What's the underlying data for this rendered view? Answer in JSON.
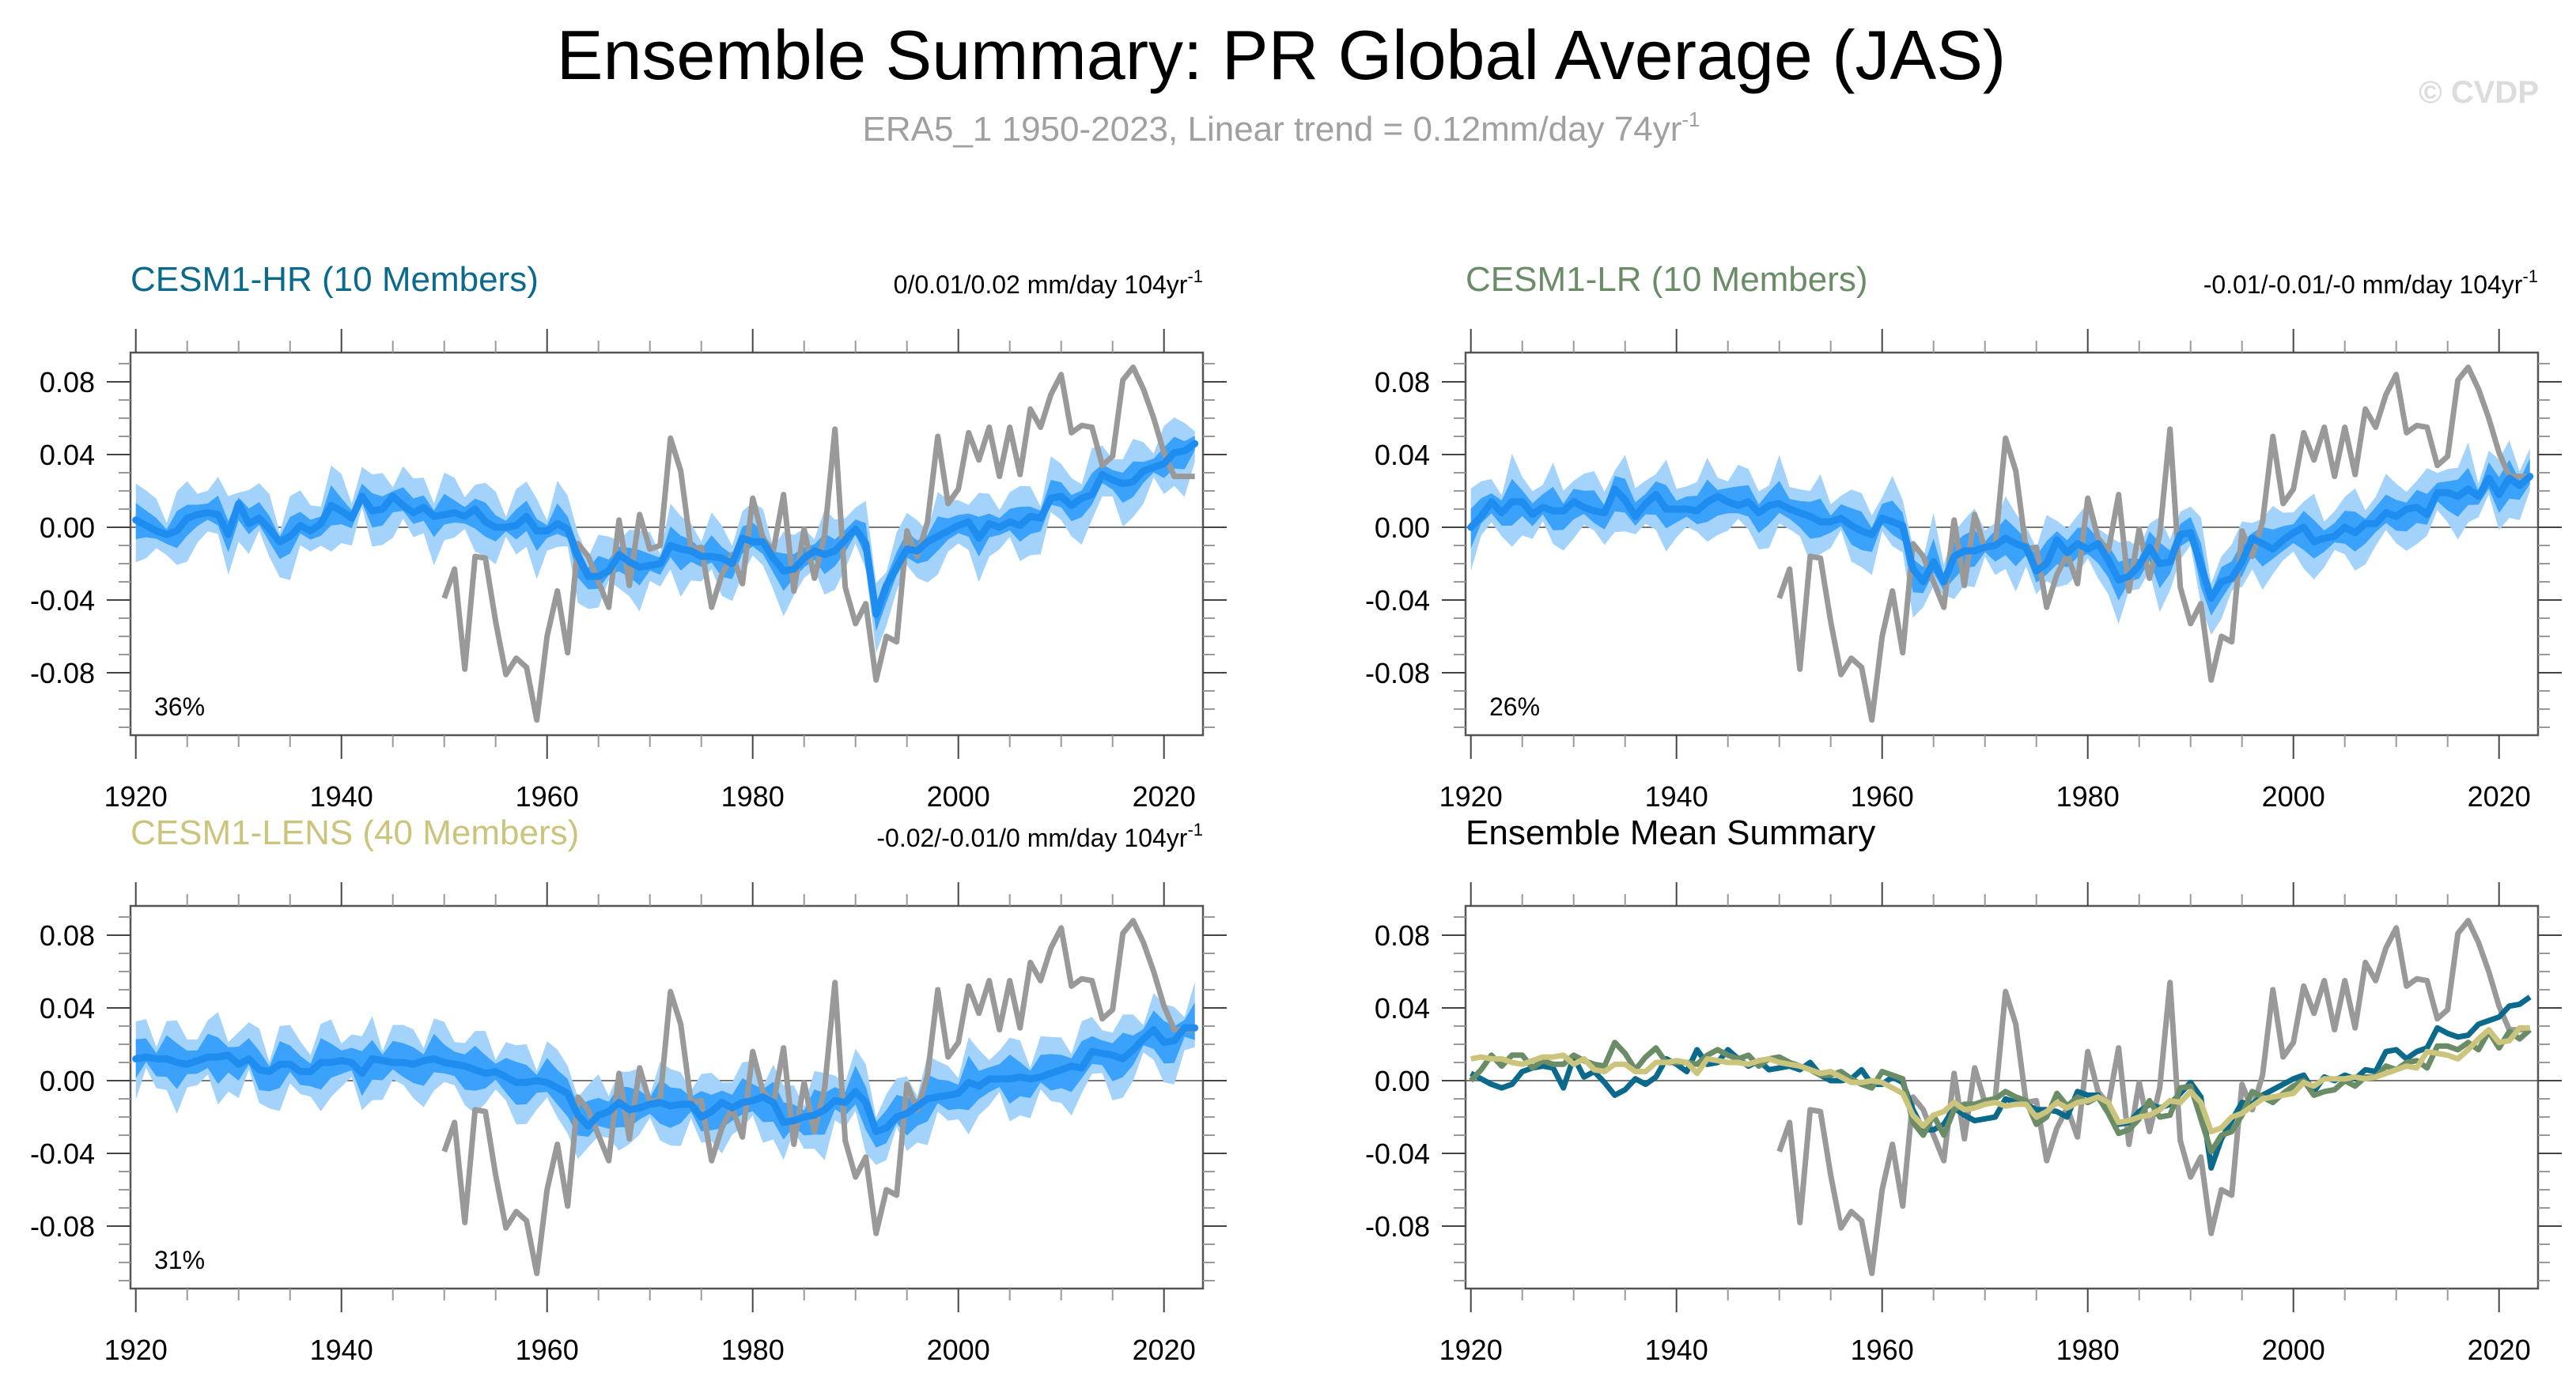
{
  "chart_data": {
    "type": "line",
    "title": "Ensemble Summary: PR Global Average (JAS)",
    "subtitle": {
      "text": "ERA5_1 1950-2023, Linear trend = 0.12mm/day 74yr",
      "superscript": "-1"
    },
    "watermark": "© CVDP",
    "layout": "2x2 grid",
    "shared_axes": {
      "xlim": [
        1920,
        2023
      ],
      "x_ticks": [
        1920,
        1940,
        1960,
        1980,
        2000,
        2020
      ],
      "x_tick_labels": [
        "1920",
        "1940",
        "1960",
        "1980",
        "2000",
        "2020"
      ],
      "x_minor_step": 5,
      "ylim": [
        -0.12,
        0.1
      ],
      "y_ticks": [
        0.08,
        0.04,
        0.0,
        -0.04,
        -0.08
      ],
      "y_tick_labels": [
        "0.08",
        "0.04",
        "0.00",
        "-0.04",
        "-0.08"
      ],
      "y_minor_step": 0.01,
      "zero_line": true,
      "grid": false,
      "xlabel": "",
      "ylabel": ""
    },
    "colors": {
      "band_outer": "#a3d2fb",
      "band_inner": "#3aa2fb",
      "ensemble_mean": "#1f8cf0",
      "observations": "#999999",
      "hr": "#0b6a8b",
      "lr": "#6a8c66",
      "lens": "#cbc47c"
    },
    "observations": {
      "name": "ERA5_1",
      "start_year": 1950,
      "values": [
        -0.039,
        -0.023,
        -0.078,
        -0.016,
        -0.017,
        -0.052,
        -0.081,
        -0.072,
        -0.077,
        -0.106,
        -0.06,
        -0.035,
        -0.069,
        -0.009,
        -0.016,
        -0.03,
        -0.044,
        0.004,
        -0.032,
        0.007,
        -0.012,
        -0.01,
        0.049,
        0.031,
        -0.012,
        -0.011,
        -0.044,
        -0.026,
        -0.015,
        -0.031,
        0.016,
        -0.006,
        -0.013,
        0.018,
        -0.035,
        -0.001,
        -0.028,
        -0.004,
        0.054,
        -0.033,
        -0.053,
        -0.042,
        -0.084,
        -0.06,
        -0.063,
        -0.002,
        -0.016,
        0.003,
        0.05,
        0.013,
        0.021,
        0.052,
        0.037,
        0.055,
        0.028,
        0.055,
        0.029,
        0.065,
        0.055,
        0.073,
        0.084,
        0.052,
        0.056,
        0.055,
        0.034,
        0.039,
        0.081,
        0.088,
        0.076,
        0.06,
        0.041,
        0.028,
        0.028,
        0.028
      ]
    },
    "panels": [
      {
        "id": "hr",
        "title": "CESM1-HR (10 Members)",
        "title_color": "#0b6a8b",
        "trend_text": "0/0.01/0.02 mm/day 104yr",
        "trend_superscript": "-1",
        "percent_label": "36%",
        "start_year": 1920,
        "ensemble_mean": [
          0.004,
          0.001,
          -0.002,
          -0.004,
          -0.002,
          0.005,
          0.007,
          0.008,
          0.007,
          -0.004,
          0.013,
          0.002,
          0.005,
          -0.001,
          -0.008,
          -0.005,
          0.001,
          -0.002,
          0.002,
          0.012,
          0.009,
          0.005,
          0.017,
          0.009,
          0.01,
          0.017,
          0.012,
          0.008,
          0.011,
          0.006,
          0.007,
          0.008,
          0.006,
          0.01,
          0.003,
          0.0,
          0.0,
          0.001,
          0.006,
          -0.002,
          -0.002,
          0.002,
          -0.001,
          -0.016,
          -0.027,
          -0.027,
          -0.024,
          -0.015,
          -0.019,
          -0.022,
          -0.021,
          -0.02,
          -0.01,
          -0.012,
          -0.013,
          -0.016,
          -0.016,
          -0.017,
          -0.02,
          -0.006,
          -0.008,
          -0.008,
          -0.017,
          -0.024,
          -0.023,
          -0.017,
          -0.013,
          -0.015,
          -0.013,
          -0.007,
          -0.001,
          -0.009,
          -0.048,
          -0.032,
          -0.022,
          -0.012,
          -0.013,
          -0.008,
          -0.005,
          -0.002,
          0.001,
          0.003,
          -0.006,
          0.002,
          0.0,
          0.003,
          0.001,
          0.006,
          0.005,
          0.016,
          0.017,
          0.012,
          0.016,
          0.018,
          0.029,
          0.026,
          0.024,
          0.025,
          0.031,
          0.033,
          0.035,
          0.041,
          0.042,
          0.046
        ],
        "inner_halfwidth": 0.007,
        "outer_halfwidth": 0.016
      },
      {
        "id": "lr",
        "title": "CESM1-LR (10 Members)",
        "title_color": "#6a8c66",
        "trend_text": "-0.01/-0.01/-0 mm/day 104yr",
        "trend_superscript": "-1",
        "percent_label": "26%",
        "start_year": 1920,
        "ensemble_mean": [
          0.0,
          0.006,
          0.014,
          0.008,
          0.014,
          0.014,
          0.007,
          0.011,
          0.009,
          0.009,
          0.014,
          0.011,
          0.009,
          0.008,
          0.021,
          0.015,
          0.006,
          0.013,
          0.018,
          0.01,
          0.01,
          0.01,
          0.009,
          0.014,
          0.017,
          0.014,
          0.012,
          0.014,
          0.008,
          0.012,
          0.013,
          0.01,
          0.008,
          0.006,
          0.003,
          0.003,
          0.005,
          0.001,
          -0.002,
          -0.004,
          0.005,
          0.003,
          0.001,
          -0.023,
          -0.03,
          -0.019,
          -0.03,
          -0.016,
          -0.013,
          -0.013,
          -0.011,
          -0.01,
          -0.006,
          -0.009,
          -0.011,
          -0.024,
          -0.02,
          -0.007,
          -0.014,
          -0.009,
          -0.012,
          -0.009,
          -0.018,
          -0.029,
          -0.027,
          -0.021,
          -0.011,
          -0.02,
          -0.019,
          -0.004,
          -0.003,
          -0.021,
          -0.039,
          -0.03,
          -0.028,
          -0.019,
          -0.006,
          -0.009,
          -0.012,
          -0.007,
          -0.003,
          0.0,
          -0.008,
          -0.006,
          -0.005,
          0.0,
          -0.003,
          0.002,
          0.002,
          0.008,
          0.006,
          0.01,
          0.011,
          0.007,
          0.019,
          0.019,
          0.017,
          0.021,
          0.017,
          0.027,
          0.018,
          0.027,
          0.023,
          0.028
        ],
        "inner_halfwidth": 0.008,
        "outer_halfwidth": 0.016
      },
      {
        "id": "lens",
        "title": "CESM1-LENS (40 Members)",
        "title_color": "#cbc47c",
        "trend_text": "-0.02/-0.01/0 mm/day 104yr",
        "trend_superscript": "-1",
        "percent_label": "31%",
        "start_year": 1920,
        "ensemble_mean": [
          0.012,
          0.013,
          0.012,
          0.012,
          0.01,
          0.009,
          0.011,
          0.013,
          0.013,
          0.014,
          0.009,
          0.012,
          0.006,
          0.005,
          0.009,
          0.009,
          0.005,
          0.005,
          0.01,
          0.01,
          0.011,
          0.01,
          0.004,
          0.012,
          0.011,
          0.01,
          0.01,
          0.009,
          0.011,
          0.012,
          0.01,
          0.009,
          0.008,
          0.006,
          0.004,
          0.005,
          0.002,
          -0.001,
          -0.001,
          0.0,
          -0.001,
          -0.004,
          -0.007,
          -0.019,
          -0.025,
          -0.019,
          -0.017,
          -0.012,
          -0.016,
          -0.015,
          -0.013,
          -0.012,
          -0.014,
          -0.013,
          -0.013,
          -0.02,
          -0.017,
          -0.012,
          -0.015,
          -0.012,
          -0.011,
          -0.009,
          -0.012,
          -0.023,
          -0.022,
          -0.02,
          -0.019,
          -0.016,
          -0.011,
          -0.012,
          -0.006,
          -0.012,
          -0.028,
          -0.026,
          -0.02,
          -0.018,
          -0.014,
          -0.01,
          -0.009,
          -0.008,
          -0.007,
          -0.001,
          -0.003,
          0.001,
          0.001,
          0.001,
          0.002,
          0.001,
          0.002,
          0.004,
          0.006,
          0.008,
          0.007,
          0.016,
          0.015,
          0.014,
          0.012,
          0.017,
          0.023,
          0.028,
          0.021,
          0.022,
          0.029,
          0.029
        ],
        "inner_halfwidth": 0.009,
        "outer_halfwidth": 0.017
      },
      {
        "id": "summary",
        "title": "Ensemble Mean Summary",
        "title_color": "#000000",
        "series_order": [
          "hr",
          "lr",
          "lens"
        ]
      }
    ]
  }
}
